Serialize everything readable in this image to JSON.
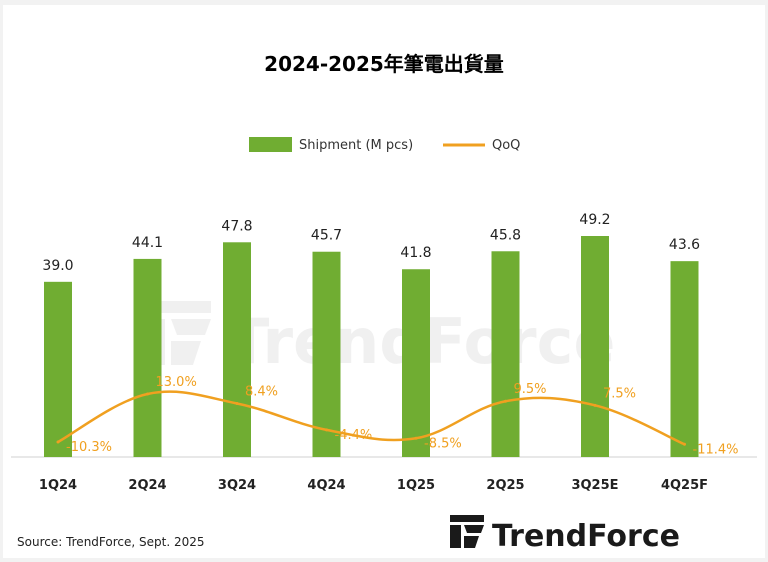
{
  "chart_data": {
    "type": "bar",
    "title": "2024-2025年筆電出貨量",
    "categories": [
      "1Q24",
      "2Q24",
      "3Q24",
      "4Q24",
      "1Q25",
      "2Q25",
      "3Q25E",
      "4Q25F"
    ],
    "series": [
      {
        "name": "Shipment (M pcs)",
        "type": "bar",
        "color": "#70ad32",
        "values": [
          39.0,
          44.1,
          47.8,
          45.7,
          41.8,
          45.8,
          49.2,
          43.6
        ],
        "labels": [
          "39.0",
          "44.1",
          "47.8",
          "45.7",
          "41.8",
          "45.8",
          "49.2",
          "43.6"
        ]
      },
      {
        "name": "QoQ",
        "type": "line",
        "color": "#f0a020",
        "values": [
          -10.3,
          13.0,
          8.4,
          -4.4,
          -8.5,
          9.5,
          7.5,
          -11.4
        ],
        "labels": [
          "-10.3%",
          "13.0%",
          "8.4%",
          "-4.4%",
          "-8.5%",
          "9.5%",
          "7.5%",
          "-11.4%"
        ]
      }
    ],
    "legend_position": "top-center",
    "grid": false,
    "ylim_bar": [
      0,
      55
    ],
    "ylim_line": [
      -20,
      100
    ]
  },
  "source": "Source: TrendForce, Sept. 2025",
  "watermark": "TrendForce",
  "logo": {
    "text": "TrendForce",
    "color": "#1a1a1a",
    "mark_color": "#1a1a1a"
  }
}
